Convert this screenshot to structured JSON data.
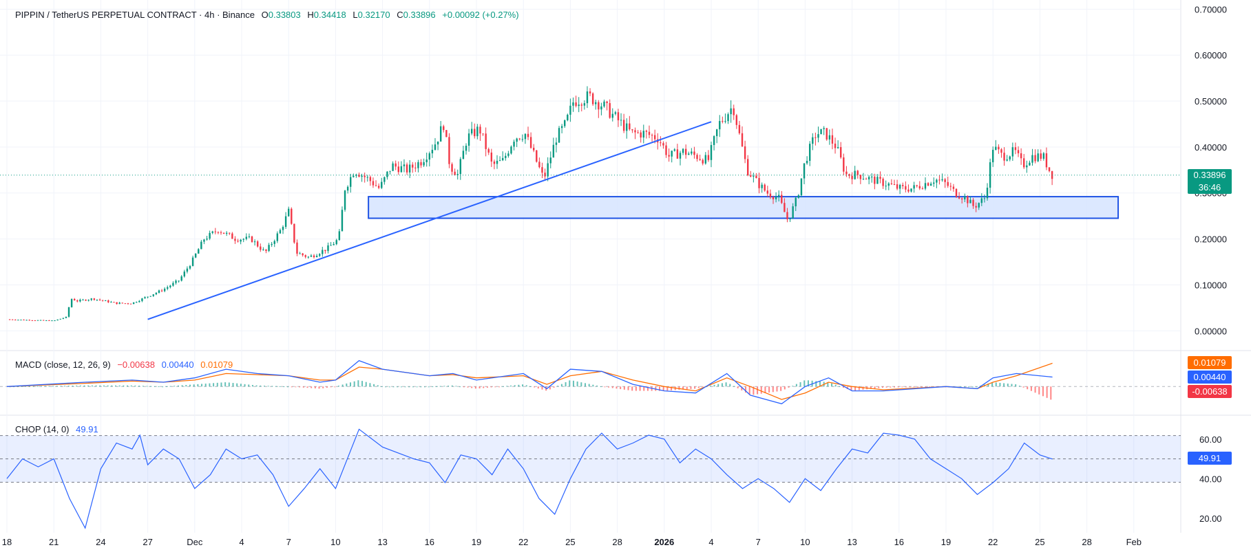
{
  "header": {
    "symbol": "PIPPIN / TetherUS PERPETUAL CONTRACT · 4h · Binance",
    "o_label": "O",
    "o_value": "0.33803",
    "h_label": "H",
    "h_value": "0.34418",
    "l_label": "L",
    "l_value": "0.32170",
    "c_label": "C",
    "c_value": "0.33896",
    "change": "+0.00092 (+0.27%)"
  },
  "price_badge": {
    "price": "0.33896",
    "countdown": "36:46"
  },
  "macd": {
    "title": "MACD (close, 12, 26, 9)",
    "hist_value": "−0.00638",
    "macd_value": "0.00440",
    "signal_value": "0.01079",
    "badge_signal": "0.01079",
    "badge_macd": "0.00440",
    "badge_hist": "-0.00638"
  },
  "chop": {
    "title": "CHOP (14, 0)",
    "value": "49.91",
    "badge": "49.91"
  },
  "colors": {
    "up": "#089981",
    "down": "#f23645",
    "macd": "#2962ff",
    "signal": "#ff6d00",
    "zone_fill": "#d6e4ff",
    "zone_border": "#1e53e5"
  },
  "chart_data": [
    {
      "type": "candlestick",
      "title": "PIPPIN / TetherUS PERPETUAL CONTRACT · 4h · Binance",
      "y_axis_ticks": [
        "0.70000",
        "0.60000",
        "0.50000",
        "0.40000",
        "0.30000",
        "0.20000",
        "0.10000",
        "0.00000"
      ],
      "ylim": [
        -0.04,
        0.72
      ],
      "x_tick_labels": [
        "18",
        "21",
        "24",
        "27",
        "Dec",
        "4",
        "7",
        "10",
        "13",
        "16",
        "19",
        "22",
        "25",
        "28",
        "2026",
        "4",
        "7",
        "10",
        "13",
        "16",
        "19",
        "22",
        "25",
        "28",
        "Feb"
      ],
      "x_range": [
        0,
        75
      ],
      "last_price": 0.33896,
      "price_path": [
        [
          0,
          0.025
        ],
        [
          1,
          0.024
        ],
        [
          2,
          0.023
        ],
        [
          3,
          0.022
        ],
        [
          3.8,
          0.03
        ],
        [
          4.1,
          0.07
        ],
        [
          4.5,
          0.065
        ],
        [
          5.5,
          0.07
        ],
        [
          7,
          0.06
        ],
        [
          8,
          0.06
        ],
        [
          9,
          0.075
        ],
        [
          10,
          0.09
        ],
        [
          11,
          0.11
        ],
        [
          11.8,
          0.15
        ],
        [
          12.6,
          0.2
        ],
        [
          13.5,
          0.22
        ],
        [
          14.6,
          0.2
        ],
        [
          15.6,
          0.2
        ],
        [
          16.5,
          0.17
        ],
        [
          17.5,
          0.22
        ],
        [
          18,
          0.26
        ],
        [
          18.5,
          0.17
        ],
        [
          19.3,
          0.16
        ],
        [
          20.5,
          0.18
        ],
        [
          21.2,
          0.2
        ],
        [
          21.6,
          0.31
        ],
        [
          22.2,
          0.35
        ],
        [
          23.1,
          0.33
        ],
        [
          23.8,
          0.31
        ],
        [
          24.6,
          0.36
        ],
        [
          25.6,
          0.35
        ],
        [
          26.5,
          0.37
        ],
        [
          27.4,
          0.41
        ],
        [
          27.9,
          0.45
        ],
        [
          28.3,
          0.36
        ],
        [
          28.8,
          0.34
        ],
        [
          29.4,
          0.42
        ],
        [
          30.2,
          0.44
        ],
        [
          31,
          0.36
        ],
        [
          31.7,
          0.37
        ],
        [
          32.4,
          0.42
        ],
        [
          33.1,
          0.43
        ],
        [
          33.7,
          0.38
        ],
        [
          34.3,
          0.33
        ],
        [
          35.1,
          0.42
        ],
        [
          35.7,
          0.45
        ],
        [
          36.2,
          0.5
        ],
        [
          37.2,
          0.51
        ],
        [
          38.1,
          0.49
        ],
        [
          39,
          0.46
        ],
        [
          39.9,
          0.43
        ],
        [
          40.7,
          0.43
        ],
        [
          41.6,
          0.42
        ],
        [
          42.3,
          0.38
        ],
        [
          43.2,
          0.39
        ],
        [
          44.1,
          0.38
        ],
        [
          44.8,
          0.37
        ],
        [
          45.5,
          0.45
        ],
        [
          46.4,
          0.49
        ],
        [
          46.9,
          0.41
        ],
        [
          47.3,
          0.35
        ],
        [
          48,
          0.32
        ],
        [
          48.6,
          0.3
        ],
        [
          49.3,
          0.29
        ],
        [
          49.9,
          0.24
        ],
        [
          50.5,
          0.29
        ],
        [
          51,
          0.37
        ],
        [
          51.7,
          0.43
        ],
        [
          52.3,
          0.43
        ],
        [
          53,
          0.4
        ],
        [
          53.6,
          0.34
        ],
        [
          54.4,
          0.34
        ],
        [
          55.2,
          0.33
        ],
        [
          56.2,
          0.32
        ],
        [
          57,
          0.31
        ],
        [
          57.9,
          0.31
        ],
        [
          58.6,
          0.32
        ],
        [
          59.3,
          0.33
        ],
        [
          60,
          0.32
        ],
        [
          60.6,
          0.3
        ],
        [
          61.2,
          0.29
        ],
        [
          61.8,
          0.27
        ],
        [
          62.5,
          0.29
        ],
        [
          63,
          0.4
        ],
        [
          63.6,
          0.38
        ],
        [
          64.4,
          0.39
        ],
        [
          64.9,
          0.36
        ],
        [
          65.5,
          0.38
        ],
        [
          66.2,
          0.38
        ],
        [
          66.6,
          0.35
        ],
        [
          66.8,
          0.339
        ]
      ],
      "trendline": {
        "from": [
          9,
          0.025
        ],
        "to": [
          45,
          0.455
        ]
      },
      "support_zone": {
        "from_x": 23.1,
        "to_x": 71,
        "low": 0.245,
        "high": 0.292
      }
    },
    {
      "type": "line",
      "title": "MACD (close, 12, 26, 9)",
      "series": [
        {
          "name": "MACD",
          "points": [
            [
              0,
              0
            ],
            [
              5,
              0.002
            ],
            [
              8,
              0.003
            ],
            [
              10,
              0.002
            ],
            [
              12,
              0.004
            ],
            [
              14,
              0.008
            ],
            [
              16,
              0.006
            ],
            [
              18,
              0.005
            ],
            [
              20,
              0.002
            ],
            [
              21,
              0.003
            ],
            [
              22.5,
              0.012
            ],
            [
              24,
              0.008
            ],
            [
              27,
              0.005
            ],
            [
              28.5,
              0.006
            ],
            [
              30,
              0.003
            ],
            [
              33,
              0.006
            ],
            [
              34.5,
              -0.001
            ],
            [
              36,
              0.008
            ],
            [
              38,
              0.007
            ],
            [
              40,
              0.001
            ],
            [
              42,
              -0.002
            ],
            [
              44,
              -0.003
            ],
            [
              46,
              0.006
            ],
            [
              47.5,
              -0.004
            ],
            [
              49.5,
              -0.008
            ],
            [
              51,
              0.0
            ],
            [
              52.5,
              0.004
            ],
            [
              54,
              -0.002
            ],
            [
              56,
              -0.002
            ],
            [
              60,
              0.0
            ],
            [
              62,
              -0.001
            ],
            [
              63,
              0.004
            ],
            [
              64.5,
              0.006
            ],
            [
              66.8,
              0.0044
            ]
          ]
        },
        {
          "name": "Signal",
          "points": [
            [
              0,
              0
            ],
            [
              5,
              0.0015
            ],
            [
              8,
              0.0025
            ],
            [
              10,
              0.002
            ],
            [
              12,
              0.003
            ],
            [
              14,
              0.006
            ],
            [
              16,
              0.0055
            ],
            [
              18,
              0.005
            ],
            [
              20,
              0.003
            ],
            [
              21,
              0.003
            ],
            [
              22.5,
              0.009
            ],
            [
              24,
              0.008
            ],
            [
              27,
              0.005
            ],
            [
              28.5,
              0.0055
            ],
            [
              30,
              0.004
            ],
            [
              33,
              0.005
            ],
            [
              34.5,
              0.001
            ],
            [
              36,
              0.005
            ],
            [
              38,
              0.007
            ],
            [
              40,
              0.003
            ],
            [
              42,
              0.0
            ],
            [
              44,
              -0.002
            ],
            [
              46,
              0.004
            ],
            [
              47.5,
              0.0
            ],
            [
              49.5,
              -0.006
            ],
            [
              51,
              -0.003
            ],
            [
              52.5,
              0.002
            ],
            [
              54,
              0.0
            ],
            [
              56,
              -0.0015
            ],
            [
              60,
              0.0
            ],
            [
              62,
              -0.001
            ],
            [
              63,
              0.002
            ],
            [
              64.5,
              0.005
            ],
            [
              66.8,
              0.01079
            ]
          ]
        }
      ],
      "ylim": [
        -0.012,
        0.016
      ]
    },
    {
      "type": "line",
      "title": "CHOP (14, 0)",
      "y_axis_ticks": [
        "60.00",
        "40.00",
        "20.00"
      ],
      "bands": [
        38.2,
        50,
        61.8
      ],
      "ylim": [
        13,
        70
      ],
      "series": [
        {
          "name": "CHOP",
          "points": [
            [
              0,
              40
            ],
            [
              1,
              50
            ],
            [
              2,
              46
            ],
            [
              3,
              50
            ],
            [
              4,
              30
            ],
            [
              5,
              15
            ],
            [
              6,
              45
            ],
            [
              7,
              58
            ],
            [
              8,
              55
            ],
            [
              8.5,
              62
            ],
            [
              9,
              47
            ],
            [
              10,
              55
            ],
            [
              11,
              50
            ],
            [
              12,
              35
            ],
            [
              13,
              42
            ],
            [
              14,
              55
            ],
            [
              15,
              50
            ],
            [
              16,
              52
            ],
            [
              17,
              42
            ],
            [
              18,
              26
            ],
            [
              19,
              35
            ],
            [
              20,
              45
            ],
            [
              21,
              35
            ],
            [
              22,
              55
            ],
            [
              22.5,
              65
            ],
            [
              24,
              56
            ],
            [
              26,
              50
            ],
            [
              27,
              48
            ],
            [
              28,
              38
            ],
            [
              29,
              52
            ],
            [
              30,
              50
            ],
            [
              31,
              42
            ],
            [
              32,
              55
            ],
            [
              33,
              45
            ],
            [
              34,
              30
            ],
            [
              35,
              22
            ],
            [
              36,
              40
            ],
            [
              37,
              55
            ],
            [
              38,
              63
            ],
            [
              39,
              55
            ],
            [
              40,
              58
            ],
            [
              41,
              62
            ],
            [
              42,
              60
            ],
            [
              43,
              48
            ],
            [
              44,
              55
            ],
            [
              45,
              50
            ],
            [
              46,
              42
            ],
            [
              47,
              35
            ],
            [
              48,
              40
            ],
            [
              49,
              35
            ],
            [
              50,
              28
            ],
            [
              51,
              40
            ],
            [
              52,
              34
            ],
            [
              53,
              45
            ],
            [
              54,
              55
            ],
            [
              55,
              53
            ],
            [
              56,
              63
            ],
            [
              57,
              62
            ],
            [
              58,
              60
            ],
            [
              59,
              50
            ],
            [
              60,
              45
            ],
            [
              61,
              40
            ],
            [
              62,
              32
            ],
            [
              63,
              38
            ],
            [
              64,
              45
            ],
            [
              65,
              58
            ],
            [
              66,
              52
            ],
            [
              66.8,
              49.91
            ]
          ]
        }
      ]
    }
  ]
}
